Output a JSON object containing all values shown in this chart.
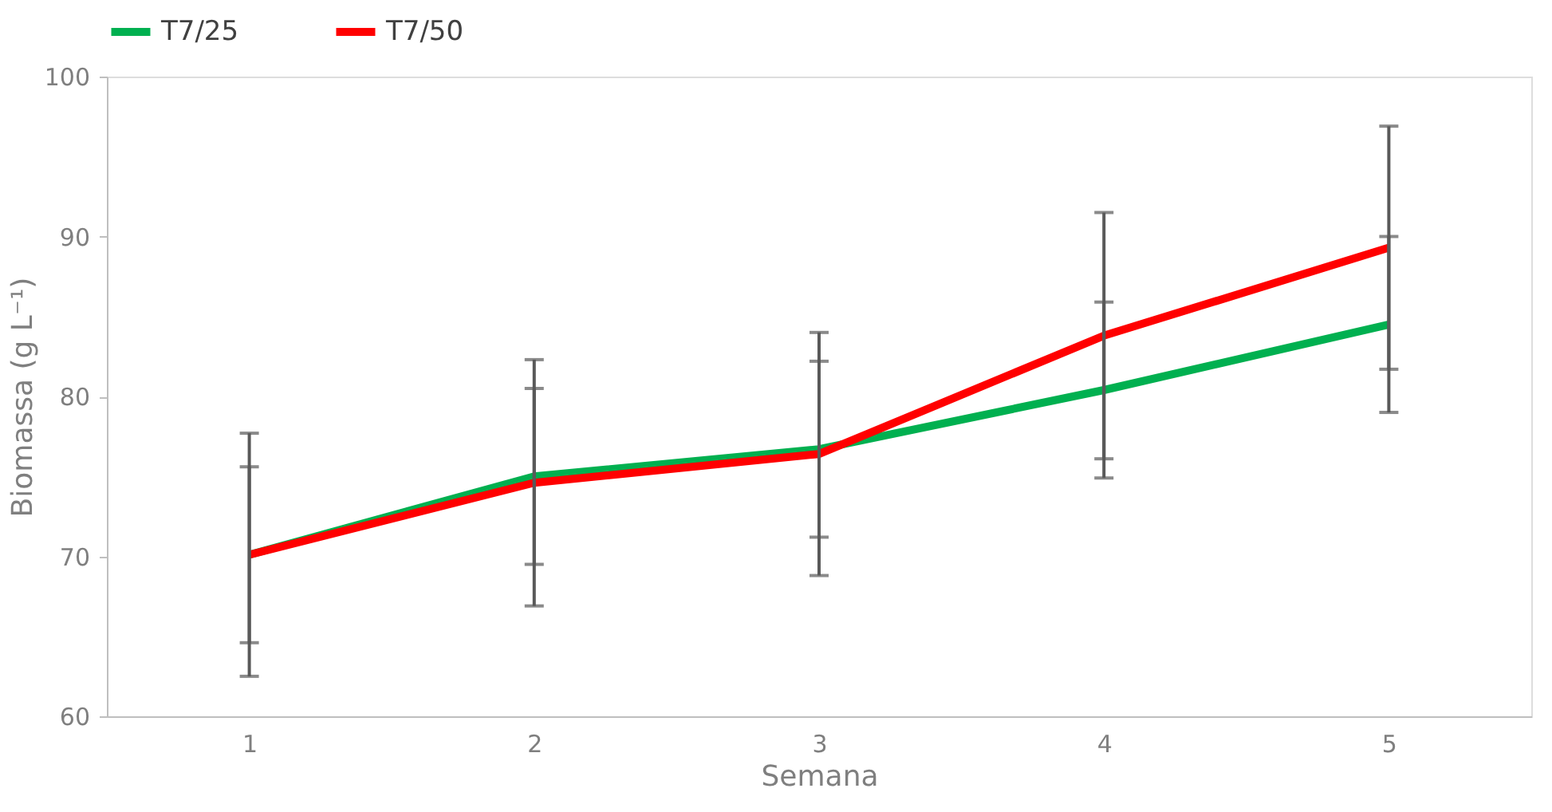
{
  "chart_data": {
    "type": "line",
    "xlabel": "Semana",
    "ylabel": "Biomassa (g L⁻¹)",
    "categories": [
      "1",
      "2",
      "3",
      "4",
      "5"
    ],
    "ylim": [
      60,
      100
    ],
    "yticks": [
      60,
      70,
      80,
      90,
      100
    ],
    "grid": false,
    "legend": "top",
    "marker": "none",
    "line_style": "solid",
    "series": [
      {
        "name": "T7/25",
        "color": "#00b050",
        "values": [
          70.1,
          75.0,
          76.7,
          80.4,
          84.5
        ],
        "errors": [
          5.5,
          5.5,
          5.5,
          5.5,
          5.5
        ]
      },
      {
        "name": "T7/50",
        "color": "#ff0000",
        "values": [
          70.1,
          74.6,
          76.4,
          83.8,
          89.3
        ],
        "errors": [
          7.6,
          7.7,
          7.6,
          7.7,
          7.6
        ]
      }
    ]
  }
}
